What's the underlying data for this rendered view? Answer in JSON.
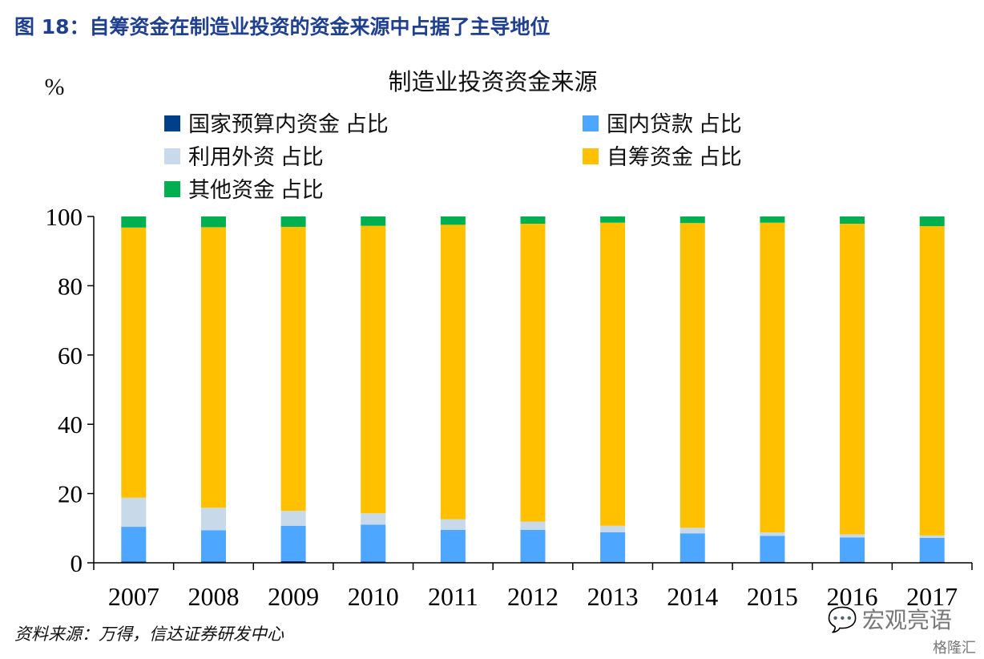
{
  "figure": {
    "title": "图 18：自筹资金在制造业投资的资金来源中占据了主导地位",
    "source": "资料来源：万得，信达证券研发中心",
    "watermark": "宏观亮语",
    "watermark2": "格隆汇"
  },
  "chart_data": {
    "type": "bar",
    "stacked": true,
    "title": "制造业投资资金来源",
    "ylabel": "%",
    "xlabel": "",
    "ylim": [
      0,
      100
    ],
    "yticks": [
      0,
      20,
      40,
      60,
      80,
      100
    ],
    "categories": [
      "2007",
      "2008",
      "2009",
      "2010",
      "2011",
      "2012",
      "2013",
      "2014",
      "2015",
      "2016",
      "2017"
    ],
    "legend_position": "top",
    "series": [
      {
        "name": "国家预算内资金 占比",
        "color": "#003f8a",
        "values": [
          0.4,
          0.4,
          0.5,
          0.4,
          0.3,
          0.3,
          0.3,
          0.3,
          0.3,
          0.3,
          0.3
        ]
      },
      {
        "name": "国内贷款 占比",
        "color": "#4da6ff",
        "values": [
          10.0,
          9.0,
          10.2,
          10.6,
          9.2,
          9.2,
          8.5,
          8.2,
          7.5,
          7.0,
          6.9
        ]
      },
      {
        "name": "利用外资 占比",
        "color": "#c8d9ea",
        "values": [
          8.4,
          6.5,
          4.3,
          3.3,
          3.1,
          2.4,
          1.9,
          1.6,
          1.0,
          0.9,
          0.7
        ]
      },
      {
        "name": "自筹资金 占比",
        "color": "#ffc000",
        "values": [
          78.0,
          81.0,
          82.0,
          83.0,
          85.0,
          86.0,
          87.5,
          88.0,
          89.4,
          89.7,
          89.3
        ]
      },
      {
        "name": "其他资金 占比",
        "color": "#00b050",
        "values": [
          3.2,
          3.1,
          3.0,
          2.7,
          2.4,
          2.1,
          1.8,
          1.9,
          1.8,
          2.1,
          2.8
        ]
      }
    ]
  }
}
